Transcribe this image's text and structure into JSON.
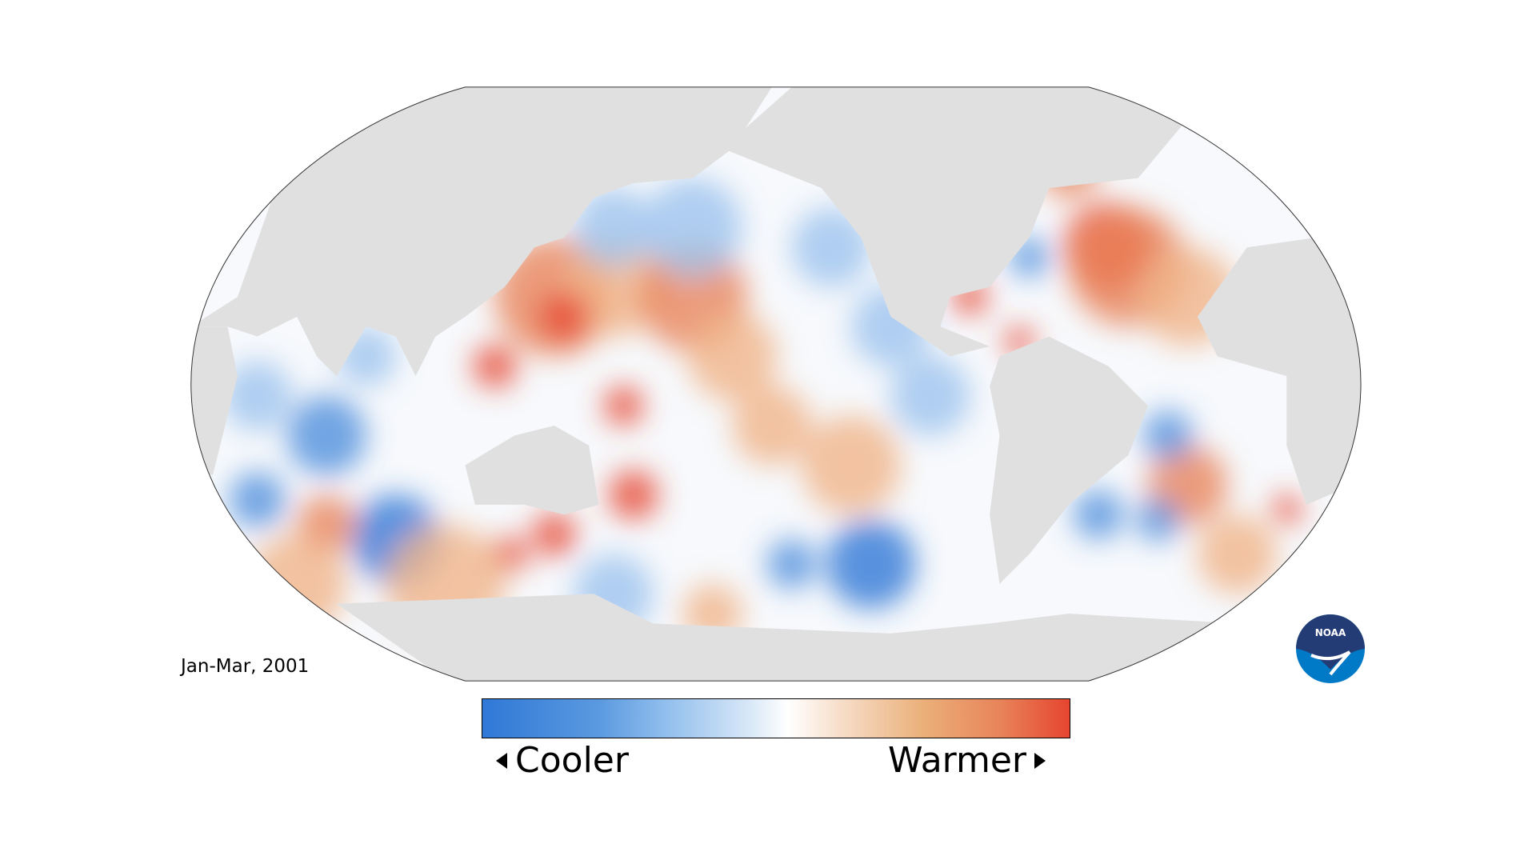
{
  "map": {
    "period_label": "Jan-Mar, 2001",
    "colors": {
      "land": "#e0e0e0",
      "cool": "#2f78d6",
      "warm": "#e6452f",
      "neutral": "#ffffff"
    }
  },
  "legend": {
    "cooler_label": "Cooler",
    "warmer_label": "Warmer",
    "left_arrow_icon": "triangle-left",
    "right_arrow_icon": "triangle-right"
  },
  "logo": {
    "text": "NOAA",
    "colors": {
      "top": "#243c75",
      "bottom": "#0079c6"
    }
  }
}
